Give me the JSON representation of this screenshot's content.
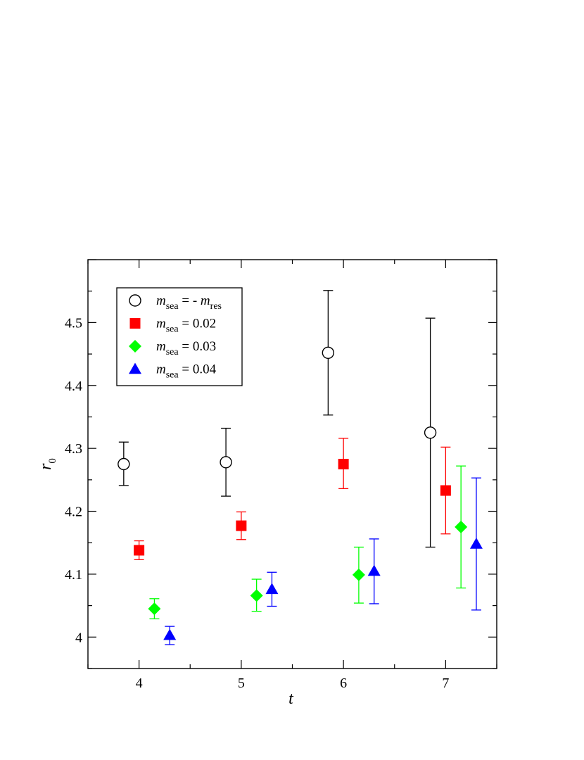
{
  "chart_data": {
    "type": "scatter",
    "xlabel": "t",
    "ylabel": {
      "main": "r",
      "sub": "0"
    },
    "xlim": [
      3.5,
      7.5
    ],
    "ylim": [
      3.95,
      4.6
    ],
    "x_ticks": [
      4,
      5,
      6,
      7
    ],
    "x_tick_labels": [
      "4",
      "5",
      "6",
      "7"
    ],
    "y_ticks": [
      4.0,
      4.1,
      4.2,
      4.3,
      4.4,
      4.5
    ],
    "y_tick_labels": [
      "4",
      "4.1",
      "4.2",
      "4.3",
      "4.4",
      "4.5"
    ],
    "grid": false,
    "legend_placement": "top-left",
    "series": [
      {
        "name": "m_sea = - m_res",
        "legend": {
          "base": "m",
          "sub": "sea",
          "mid": " = - ",
          "base2": "m",
          "sub2": "res"
        },
        "marker": "circle-open",
        "color": "#000000",
        "points": [
          {
            "x": 3.85,
            "y": 4.275,
            "err_low": 4.241,
            "err_high": 4.31
          },
          {
            "x": 4.85,
            "y": 4.278,
            "err_low": 4.224,
            "err_high": 4.332
          },
          {
            "x": 5.85,
            "y": 4.452,
            "err_low": 4.353,
            "err_high": 4.551
          },
          {
            "x": 6.85,
            "y": 4.325,
            "err_low": 4.143,
            "err_high": 4.507
          }
        ]
      },
      {
        "name": "m_sea = 0.02",
        "legend": {
          "base": "m",
          "sub": "sea",
          "mid": " = 0.02"
        },
        "marker": "square",
        "color": "#ff0000",
        "points": [
          {
            "x": 4.0,
            "y": 4.138,
            "err_low": 4.123,
            "err_high": 4.153
          },
          {
            "x": 5.0,
            "y": 4.177,
            "err_low": 4.155,
            "err_high": 4.199
          },
          {
            "x": 6.0,
            "y": 4.275,
            "err_low": 4.236,
            "err_high": 4.316
          },
          {
            "x": 7.0,
            "y": 4.233,
            "err_low": 4.164,
            "err_high": 4.302
          }
        ]
      },
      {
        "name": "m_sea = 0.03",
        "legend": {
          "base": "m",
          "sub": "sea",
          "mid": " = 0.03"
        },
        "marker": "diamond",
        "color": "#00ff00",
        "points": [
          {
            "x": 4.15,
            "y": 4.045,
            "err_low": 4.029,
            "err_high": 4.061
          },
          {
            "x": 5.15,
            "y": 4.066,
            "err_low": 4.041,
            "err_high": 4.092
          },
          {
            "x": 6.15,
            "y": 4.099,
            "err_low": 4.054,
            "err_high": 4.143
          },
          {
            "x": 7.15,
            "y": 4.175,
            "err_low": 4.078,
            "err_high": 4.272
          }
        ]
      },
      {
        "name": "m_sea = 0.04",
        "legend": {
          "base": "m",
          "sub": "sea",
          "mid": " = 0.04"
        },
        "marker": "triangle",
        "color": "#0000ff",
        "points": [
          {
            "x": 4.3,
            "y": 4.003,
            "err_low": 3.988,
            "err_high": 4.017
          },
          {
            "x": 5.3,
            "y": 4.076,
            "err_low": 4.049,
            "err_high": 4.103
          },
          {
            "x": 6.3,
            "y": 4.105,
            "err_low": 4.053,
            "err_high": 4.156
          },
          {
            "x": 7.3,
            "y": 4.148,
            "err_low": 4.043,
            "err_high": 4.253
          }
        ]
      }
    ]
  }
}
